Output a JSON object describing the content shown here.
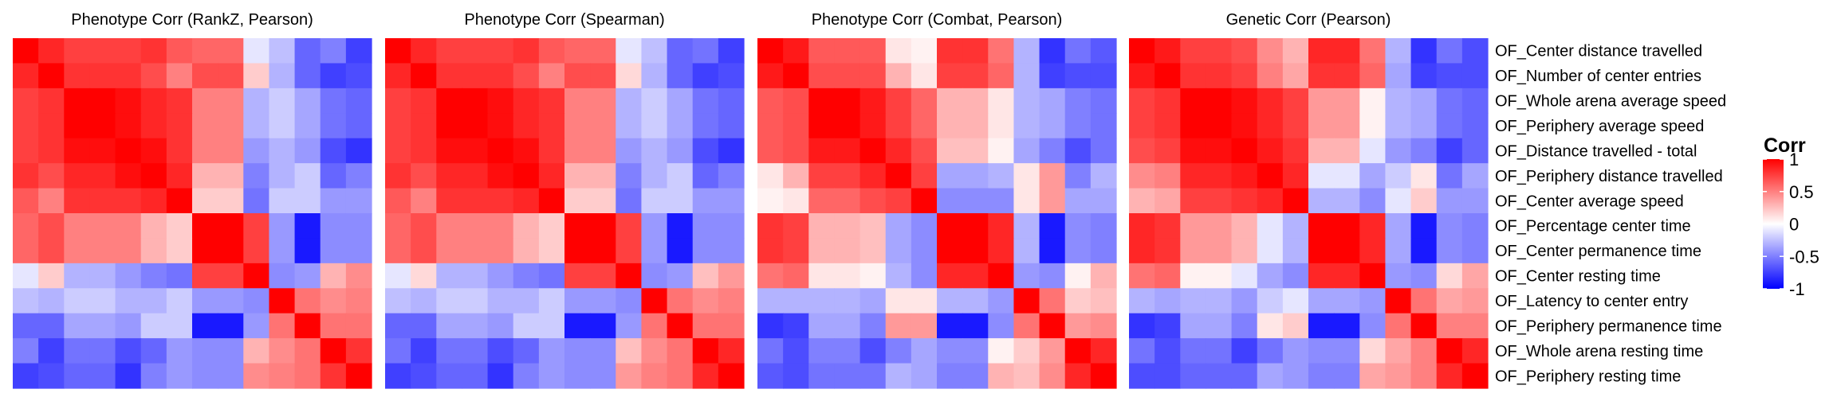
{
  "chart_data": {
    "type": "heatmap",
    "panels": [
      {
        "title": "Phenotype Corr (RankZ, Pearson)",
        "values": [
          [
            1.0,
            0.85,
            0.75,
            0.75,
            0.75,
            0.8,
            0.65,
            0.6,
            0.6,
            -0.1,
            -0.25,
            -0.6,
            -0.5,
            -0.75
          ],
          [
            0.85,
            1.0,
            0.8,
            0.8,
            0.8,
            0.7,
            0.5,
            0.7,
            0.7,
            0.2,
            -0.3,
            -0.6,
            -0.75,
            -0.7
          ],
          [
            0.75,
            0.8,
            1.0,
            1.0,
            0.95,
            0.85,
            0.8,
            0.5,
            0.5,
            -0.3,
            -0.2,
            -0.35,
            -0.55,
            -0.6
          ],
          [
            0.75,
            0.8,
            1.0,
            1.0,
            0.95,
            0.85,
            0.8,
            0.5,
            0.5,
            -0.3,
            -0.2,
            -0.35,
            -0.55,
            -0.6
          ],
          [
            0.75,
            0.8,
            0.95,
            0.95,
            1.0,
            0.95,
            0.8,
            0.5,
            0.5,
            -0.4,
            -0.3,
            -0.4,
            -0.7,
            -0.8
          ],
          [
            0.8,
            0.7,
            0.85,
            0.85,
            0.95,
            1.0,
            0.85,
            0.3,
            0.3,
            -0.5,
            -0.3,
            -0.2,
            -0.6,
            -0.5
          ],
          [
            0.65,
            0.5,
            0.8,
            0.8,
            0.8,
            0.85,
            1.0,
            0.2,
            0.2,
            -0.55,
            -0.2,
            -0.2,
            -0.4,
            -0.4
          ],
          [
            0.6,
            0.7,
            0.5,
            0.5,
            0.5,
            0.3,
            0.2,
            1.0,
            1.0,
            0.75,
            -0.4,
            -0.9,
            -0.45,
            -0.45
          ],
          [
            0.6,
            0.7,
            0.5,
            0.5,
            0.5,
            0.3,
            0.2,
            1.0,
            1.0,
            0.75,
            -0.4,
            -0.9,
            -0.45,
            -0.45
          ],
          [
            -0.1,
            0.2,
            -0.3,
            -0.3,
            -0.4,
            -0.5,
            -0.55,
            0.75,
            0.75,
            1.0,
            -0.45,
            -0.4,
            0.3,
            0.45
          ],
          [
            -0.25,
            -0.3,
            -0.2,
            -0.2,
            -0.3,
            -0.3,
            -0.2,
            -0.4,
            -0.4,
            -0.45,
            1.0,
            0.55,
            0.45,
            0.5
          ],
          [
            -0.6,
            -0.6,
            -0.35,
            -0.35,
            -0.4,
            -0.2,
            -0.2,
            -0.9,
            -0.9,
            -0.4,
            0.55,
            1.0,
            0.55,
            0.55
          ],
          [
            -0.5,
            -0.75,
            -0.55,
            -0.55,
            -0.7,
            -0.6,
            -0.4,
            -0.45,
            -0.45,
            0.3,
            0.45,
            0.55,
            1.0,
            0.8
          ],
          [
            -0.75,
            -0.7,
            -0.6,
            -0.6,
            -0.8,
            -0.5,
            -0.4,
            -0.45,
            -0.45,
            0.45,
            0.5,
            0.55,
            0.8,
            1.0
          ]
        ]
      },
      {
        "title": "Phenotype Corr (Spearman)",
        "values": [
          [
            1.0,
            0.85,
            0.75,
            0.75,
            0.75,
            0.8,
            0.65,
            0.6,
            0.6,
            -0.1,
            -0.25,
            -0.6,
            -0.55,
            -0.75
          ],
          [
            0.85,
            1.0,
            0.8,
            0.8,
            0.8,
            0.7,
            0.5,
            0.7,
            0.7,
            0.15,
            -0.3,
            -0.6,
            -0.75,
            -0.7
          ],
          [
            0.75,
            0.8,
            1.0,
            1.0,
            0.95,
            0.85,
            0.8,
            0.5,
            0.5,
            -0.3,
            -0.2,
            -0.35,
            -0.55,
            -0.6
          ],
          [
            0.75,
            0.8,
            1.0,
            1.0,
            0.95,
            0.85,
            0.8,
            0.5,
            0.5,
            -0.3,
            -0.2,
            -0.35,
            -0.55,
            -0.6
          ],
          [
            0.75,
            0.8,
            0.95,
            0.95,
            1.0,
            0.95,
            0.8,
            0.5,
            0.5,
            -0.4,
            -0.3,
            -0.4,
            -0.7,
            -0.8
          ],
          [
            0.8,
            0.7,
            0.85,
            0.85,
            0.95,
            1.0,
            0.85,
            0.3,
            0.3,
            -0.5,
            -0.3,
            -0.2,
            -0.6,
            -0.5
          ],
          [
            0.65,
            0.5,
            0.8,
            0.8,
            0.8,
            0.85,
            1.0,
            0.2,
            0.2,
            -0.55,
            -0.2,
            -0.2,
            -0.4,
            -0.4
          ],
          [
            0.6,
            0.7,
            0.5,
            0.5,
            0.5,
            0.3,
            0.2,
            1.0,
            1.0,
            0.75,
            -0.4,
            -0.9,
            -0.45,
            -0.45
          ],
          [
            0.6,
            0.7,
            0.5,
            0.5,
            0.5,
            0.3,
            0.2,
            1.0,
            1.0,
            0.75,
            -0.4,
            -0.9,
            -0.45,
            -0.45
          ],
          [
            -0.1,
            0.15,
            -0.3,
            -0.3,
            -0.4,
            -0.5,
            -0.55,
            0.75,
            0.75,
            1.0,
            -0.45,
            -0.4,
            0.25,
            0.4
          ],
          [
            -0.25,
            -0.3,
            -0.2,
            -0.2,
            -0.3,
            -0.3,
            -0.2,
            -0.4,
            -0.4,
            -0.45,
            1.0,
            0.55,
            0.45,
            0.5
          ],
          [
            -0.6,
            -0.6,
            -0.35,
            -0.35,
            -0.4,
            -0.2,
            -0.2,
            -0.9,
            -0.9,
            -0.4,
            0.55,
            1.0,
            0.55,
            0.55
          ],
          [
            -0.55,
            -0.75,
            -0.55,
            -0.55,
            -0.7,
            -0.6,
            -0.4,
            -0.45,
            -0.45,
            0.25,
            0.45,
            0.55,
            1.0,
            0.85
          ],
          [
            -0.75,
            -0.7,
            -0.6,
            -0.6,
            -0.8,
            -0.5,
            -0.4,
            -0.45,
            -0.45,
            0.4,
            0.5,
            0.55,
            0.85,
            1.0
          ]
        ]
      },
      {
        "title": "Phenotype Corr (Combat, Pearson)",
        "values": [
          [
            1.0,
            0.9,
            0.65,
            0.65,
            0.65,
            0.1,
            0.05,
            0.8,
            0.8,
            0.55,
            -0.3,
            -0.8,
            -0.55,
            -0.65
          ],
          [
            0.9,
            1.0,
            0.7,
            0.7,
            0.7,
            0.3,
            0.1,
            0.75,
            0.75,
            0.6,
            -0.3,
            -0.75,
            -0.7,
            -0.7
          ],
          [
            0.65,
            0.7,
            1.0,
            1.0,
            0.9,
            0.75,
            0.6,
            0.3,
            0.3,
            0.1,
            -0.3,
            -0.35,
            -0.5,
            -0.55
          ],
          [
            0.65,
            0.7,
            1.0,
            1.0,
            0.9,
            0.75,
            0.6,
            0.3,
            0.3,
            0.1,
            -0.3,
            -0.35,
            -0.5,
            -0.55
          ],
          [
            0.65,
            0.7,
            0.9,
            0.9,
            1.0,
            0.85,
            0.7,
            0.25,
            0.25,
            0.05,
            -0.35,
            -0.5,
            -0.7,
            -0.55
          ],
          [
            0.1,
            0.3,
            0.75,
            0.75,
            0.85,
            1.0,
            0.75,
            -0.35,
            -0.35,
            -0.3,
            0.1,
            0.4,
            -0.5,
            -0.3
          ],
          [
            0.05,
            0.1,
            0.6,
            0.6,
            0.7,
            0.75,
            1.0,
            -0.45,
            -0.45,
            -0.45,
            0.1,
            0.4,
            -0.35,
            -0.35
          ],
          [
            0.8,
            0.75,
            0.3,
            0.3,
            0.25,
            -0.35,
            -0.45,
            1.0,
            1.0,
            0.85,
            -0.3,
            -0.9,
            -0.45,
            -0.5
          ],
          [
            0.8,
            0.75,
            0.3,
            0.3,
            0.25,
            -0.35,
            -0.45,
            1.0,
            1.0,
            0.85,
            -0.3,
            -0.9,
            -0.45,
            -0.5
          ],
          [
            0.55,
            0.6,
            0.1,
            0.1,
            0.05,
            -0.3,
            -0.45,
            0.85,
            0.85,
            1.0,
            -0.4,
            -0.45,
            0.05,
            0.3
          ],
          [
            -0.3,
            -0.3,
            -0.3,
            -0.3,
            -0.35,
            0.1,
            0.1,
            -0.3,
            -0.3,
            -0.4,
            1.0,
            0.55,
            0.2,
            0.25
          ],
          [
            -0.8,
            -0.75,
            -0.35,
            -0.35,
            -0.5,
            0.4,
            0.4,
            -0.9,
            -0.9,
            -0.45,
            0.55,
            1.0,
            0.4,
            0.45
          ],
          [
            -0.55,
            -0.7,
            -0.5,
            -0.5,
            -0.7,
            -0.5,
            -0.35,
            -0.45,
            -0.45,
            0.05,
            0.2,
            0.4,
            1.0,
            0.85
          ],
          [
            -0.65,
            -0.7,
            -0.55,
            -0.55,
            -0.55,
            -0.3,
            -0.35,
            -0.5,
            -0.5,
            0.3,
            0.25,
            0.45,
            0.85,
            1.0
          ]
        ]
      },
      {
        "title": "Genetic Corr  (Pearson)",
        "values": [
          [
            1.0,
            0.9,
            0.75,
            0.75,
            0.7,
            0.45,
            0.3,
            0.85,
            0.85,
            0.55,
            -0.3,
            -0.8,
            -0.55,
            -0.7
          ],
          [
            0.9,
            1.0,
            0.8,
            0.8,
            0.75,
            0.5,
            0.35,
            0.8,
            0.8,
            0.6,
            -0.35,
            -0.75,
            -0.7,
            -0.7
          ],
          [
            0.75,
            0.8,
            1.0,
            1.0,
            0.95,
            0.85,
            0.75,
            0.4,
            0.4,
            0.05,
            -0.3,
            -0.35,
            -0.55,
            -0.6
          ],
          [
            0.75,
            0.8,
            1.0,
            1.0,
            0.95,
            0.85,
            0.75,
            0.4,
            0.4,
            0.05,
            -0.3,
            -0.35,
            -0.55,
            -0.6
          ],
          [
            0.7,
            0.75,
            0.95,
            0.95,
            1.0,
            0.9,
            0.8,
            0.3,
            0.3,
            -0.1,
            -0.4,
            -0.5,
            -0.75,
            -0.6
          ],
          [
            0.45,
            0.5,
            0.85,
            0.85,
            0.9,
            1.0,
            0.85,
            -0.1,
            -0.1,
            -0.35,
            -0.2,
            0.1,
            -0.55,
            -0.35
          ],
          [
            0.3,
            0.35,
            0.75,
            0.75,
            0.8,
            0.85,
            1.0,
            -0.3,
            -0.3,
            -0.45,
            -0.1,
            0.2,
            -0.4,
            -0.4
          ],
          [
            0.85,
            0.8,
            0.4,
            0.4,
            0.3,
            -0.1,
            -0.3,
            1.0,
            1.0,
            0.85,
            -0.35,
            -0.9,
            -0.45,
            -0.5
          ],
          [
            0.85,
            0.8,
            0.4,
            0.4,
            0.3,
            -0.1,
            -0.3,
            1.0,
            1.0,
            0.85,
            -0.35,
            -0.9,
            -0.45,
            -0.5
          ],
          [
            0.55,
            0.6,
            0.05,
            0.05,
            -0.1,
            -0.35,
            -0.45,
            0.85,
            0.85,
            1.0,
            -0.4,
            -0.45,
            0.15,
            0.35
          ],
          [
            -0.3,
            -0.35,
            -0.3,
            -0.3,
            -0.4,
            -0.2,
            -0.1,
            -0.35,
            -0.35,
            -0.4,
            1.0,
            0.55,
            0.35,
            0.4
          ],
          [
            -0.8,
            -0.75,
            -0.35,
            -0.35,
            -0.5,
            0.1,
            0.2,
            -0.9,
            -0.9,
            -0.45,
            0.55,
            1.0,
            0.5,
            0.5
          ],
          [
            -0.55,
            -0.7,
            -0.55,
            -0.55,
            -0.75,
            -0.55,
            -0.4,
            -0.45,
            -0.45,
            0.15,
            0.35,
            0.5,
            1.0,
            0.85
          ],
          [
            -0.7,
            -0.7,
            -0.6,
            -0.6,
            -0.6,
            -0.35,
            -0.4,
            -0.5,
            -0.5,
            0.35,
            0.4,
            0.5,
            0.85,
            1.0
          ]
        ]
      }
    ],
    "row_labels": [
      "OF_Center distance travelled",
      "OF_Number of center entries",
      "OF_Whole arena average speed",
      "OF_Periphery average speed",
      "OF_Distance travelled - total",
      "OF_Periphery distance travelled",
      "OF_Center average speed",
      "OF_Percentage center time",
      "OF_Center permanence time",
      "OF_Center resting time",
      "OF_Latency to center entry",
      "OF_Periphery permanence time",
      "OF_Whole arena resting time",
      "OF_Periphery resting time"
    ],
    "legend": {
      "title": "Corr",
      "ticks": [
        "1",
        "0.5",
        "0",
        "-0.5",
        "-1"
      ],
      "tick_values": [
        1,
        0.5,
        0,
        -0.5,
        -1
      ],
      "range": [
        -1,
        1
      ],
      "placement": "right"
    },
    "colors": {
      "high": "#ff0000",
      "mid": "#ffffff",
      "low": "#0000ff"
    }
  }
}
